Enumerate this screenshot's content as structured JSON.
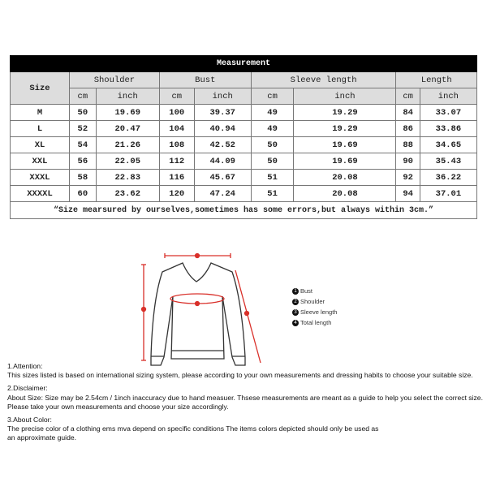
{
  "table": {
    "title": "Measurement",
    "size_header": "Size",
    "groups": [
      "Shoulder",
      "Bust",
      "Sleeve length",
      "Length"
    ],
    "units": [
      "cm",
      "inch",
      "cm",
      "inch",
      "cm",
      "inch",
      "cm",
      "inch"
    ],
    "rows": [
      [
        "M",
        "50",
        "19.69",
        "100",
        "39.37",
        "49",
        "19.29",
        "84",
        "33.07"
      ],
      [
        "L",
        "52",
        "20.47",
        "104",
        "40.94",
        "49",
        "19.29",
        "86",
        "33.86"
      ],
      [
        "XL",
        "54",
        "21.26",
        "108",
        "42.52",
        "50",
        "19.69",
        "88",
        "34.65"
      ],
      [
        "XXL",
        "56",
        "22.05",
        "112",
        "44.09",
        "50",
        "19.69",
        "90",
        "35.43"
      ],
      [
        "XXXL",
        "58",
        "22.83",
        "116",
        "45.67",
        "51",
        "20.08",
        "92",
        "36.22"
      ],
      [
        "XXXXL",
        "60",
        "23.62",
        "120",
        "47.24",
        "51",
        "20.08",
        "94",
        "37.01"
      ]
    ],
    "note": "“Size mearsured by ourselves,sometimes has some errors,but always within 3cm.”"
  },
  "diagram": {
    "accent": "#d9302a",
    "legend": [
      {
        "n": "1",
        "label": "Bust"
      },
      {
        "n": "2",
        "label": "Shoulder"
      },
      {
        "n": "3",
        "label": "Sleeve length"
      },
      {
        "n": "4",
        "label": "Total length"
      }
    ]
  },
  "info": [
    {
      "heading": "1.Attention:",
      "lines": [
        "This sizes listed is based on international sizing system, please according to your own measurements and dressing habits to choose your suitable size."
      ]
    },
    {
      "heading": "2.Disclaimer:",
      "lines": [
        "About Size: Size may be 2.54cm / 1inch inaccuracy due to hand measuer. Thsese measurements are meant as a guide to help you select the correct size.",
        "Please take your own measurements and choose your size accordingly."
      ]
    },
    {
      "heading": "3.About Color:",
      "lines": [
        "The precise color of a clothing ems mva depend on specific conditions The items colors depicted should only be used as",
        "an approximate guide."
      ]
    }
  ]
}
